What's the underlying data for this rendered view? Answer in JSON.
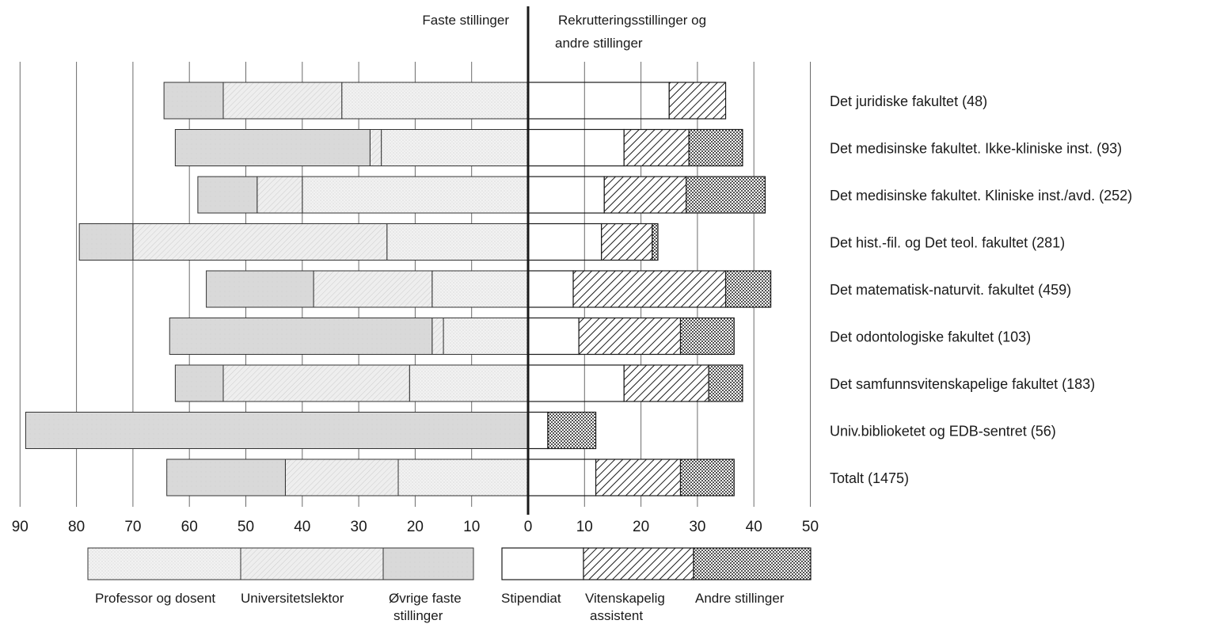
{
  "chart_data": {
    "type": "bar",
    "orientation": "diverging-horizontal-stacked",
    "headers": {
      "left": "Faste stillinger",
      "right_line1": "Rekrutteringsstillinger og",
      "right_line2": "andre stillinger"
    },
    "x_ticks": [
      "90",
      "80",
      "70",
      "60",
      "50",
      "40",
      "30",
      "20",
      "10",
      "0",
      "10",
      "20",
      "30",
      "40",
      "50"
    ],
    "xlim": [
      -90,
      50
    ],
    "grid": true,
    "categories": [
      "Det juridiske fakultet (48)",
      "Det medisinske fakultet. Ikke-kliniske inst. (93)",
      "Det medisinske fakultet. Kliniske inst./avd. (252)",
      "Det hist.-fil. og Det teol. fakultet (281)",
      "Det matematisk-naturvit. fakultet (459)",
      "Det odontologiske fakultet (103)",
      "Det samfunnsvitenskapelige fakultet (183)",
      "Univ.biblioketet og EDB-sentret (56)",
      "Totalt (1475)"
    ],
    "left_series": [
      {
        "name": "Professor og dosent",
        "values": [
          33,
          26,
          40,
          25,
          17,
          15,
          21,
          0,
          23
        ],
        "color": "#ededed",
        "pattern": "dots-fine"
      },
      {
        "name": "Universitetslektor",
        "values": [
          21,
          2,
          8,
          45,
          21,
          2,
          33,
          0,
          20
        ],
        "color": "#e8e8e8",
        "pattern": "hatch-fine"
      },
      {
        "name": "Øvrige faste stillinger",
        "values": [
          10.5,
          34.5,
          10.5,
          9.5,
          19,
          46.5,
          8.5,
          89,
          21
        ],
        "color": "#d6d6d6",
        "pattern": "solid-gray"
      }
    ],
    "right_series": [
      {
        "name": "Stipendiat",
        "values": [
          25,
          17,
          13.5,
          13,
          8,
          9,
          17,
          3.5,
          12
        ],
        "color": "#1c1c1c",
        "pattern": "solid-black"
      },
      {
        "name": "Vitenskapelig assistent",
        "values": [
          10,
          11.5,
          14.5,
          9,
          27,
          18,
          15,
          0,
          15
        ],
        "color": "#ffffff",
        "pattern": "hatch-bold"
      },
      {
        "name": "Andre stillinger",
        "values": [
          0,
          9.5,
          14,
          1,
          8,
          9.5,
          6,
          8.5,
          9.5
        ],
        "color": "#ffffff",
        "pattern": "dots-dense"
      }
    ],
    "legend": {
      "placement": "bottom",
      "left_labels": [
        {
          "line1": "Professor og dosent",
          "line2": ""
        },
        {
          "line1": "Universitetslektor",
          "line2": ""
        },
        {
          "line1": "Øvrige faste",
          "line2": "stillinger"
        }
      ],
      "right_labels": [
        {
          "line1": "Stipendiat",
          "line2": ""
        },
        {
          "line1": "Vitenskapelig",
          "line2": "assistent"
        },
        {
          "line1": "Andre stillinger",
          "line2": ""
        }
      ]
    }
  }
}
